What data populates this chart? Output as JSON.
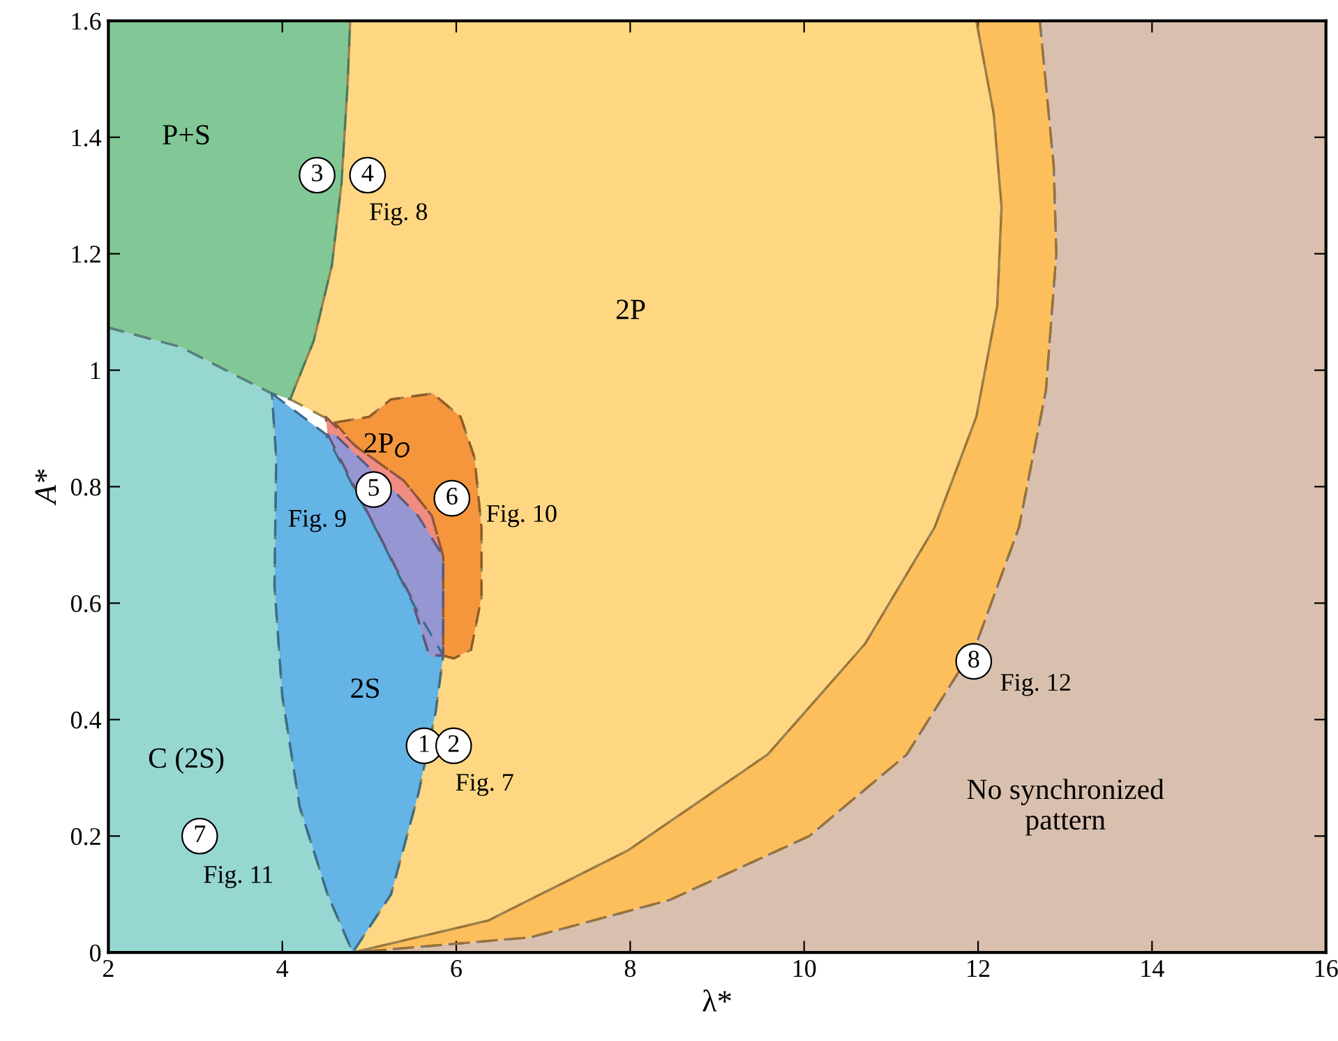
{
  "chart_data": {
    "type": "area",
    "xlabel": "λ*",
    "ylabel": "A*",
    "xlim": [
      2,
      16
    ],
    "ylim": [
      0,
      1.6
    ],
    "xticks": [
      2,
      4,
      6,
      8,
      10,
      12,
      14,
      16
    ],
    "yticks": [
      0,
      0.2,
      0.4,
      0.6,
      0.8,
      1,
      1.2,
      1.4,
      1.6
    ],
    "grid": false,
    "legend": false,
    "line_style": "dashed",
    "series": [
      {
        "name": "No synchronized\npattern",
        "color": "#d9c0ae",
        "x": [
          12.71,
          12.87,
          12.9,
          12.78,
          12.47,
          11.98,
          11.18,
          10.06,
          8.45,
          6.85,
          4.81,
          16,
          16
        ],
        "values": [
          1.6,
          1.35,
          1.2,
          0.965,
          0.73,
          0.53,
          0.34,
          0.2,
          0.09,
          0.026,
          0,
          0,
          1.6
        ]
      },
      {
        "color": "#fdbe5c",
        "x": [
          11.98,
          12.18,
          12.27,
          12.22,
          11.98,
          11.5,
          10.7,
          9.58,
          7.97,
          6.37,
          4.81,
          6.85,
          8.45,
          10.06,
          11.18,
          11.98,
          12.47,
          12.78,
          12.9,
          12.87,
          12.71
        ],
        "values": [
          1.6,
          1.44,
          1.28,
          1.11,
          0.92,
          0.73,
          0.53,
          0.34,
          0.175,
          0.055,
          0,
          0.026,
          0.09,
          0.2,
          0.34,
          0.53,
          0.73,
          0.965,
          1.2,
          1.35,
          1.6
        ]
      },
      {
        "name": "2P",
        "color": "#ffd782",
        "x": [
          4.78,
          11.98,
          12.18,
          12.27,
          12.22,
          11.98,
          11.5,
          10.7,
          9.58,
          7.97,
          6.37,
          4.81,
          5.25,
          5.56,
          5.76,
          5.85,
          5.97,
          6.17,
          6.29,
          6.29,
          6.21,
          6.05,
          5.73,
          5.25,
          5.0,
          4.6,
          4.09,
          4.36,
          4.57,
          4.68,
          4.75
        ],
        "values": [
          1.6,
          1.6,
          1.44,
          1.28,
          1.11,
          0.92,
          0.73,
          0.53,
          0.34,
          0.175,
          0.055,
          0,
          0.1,
          0.27,
          0.41,
          0.51,
          0.505,
          0.52,
          0.61,
          0.73,
          0.85,
          0.92,
          0.96,
          0.95,
          0.92,
          0.91,
          0.95,
          1.05,
          1.18,
          1.32,
          1.49
        ]
      },
      {
        "name": "P+S",
        "color": "#82c896",
        "x": [
          2,
          4.78,
          4.75,
          4.68,
          4.57,
          4.36,
          4.09,
          3.88,
          3.48,
          2.83,
          2
        ],
        "values": [
          1.6,
          1.6,
          1.49,
          1.32,
          1.18,
          1.05,
          0.95,
          0.96,
          0.99,
          1.04,
          1.073
        ]
      },
      {
        "name": "C (2S)",
        "color": "#96d7d2",
        "x": [
          2,
          2.83,
          3.48,
          3.88,
          3.93,
          3.91,
          4.0,
          4.2,
          4.52,
          4.81,
          2,
          2
        ],
        "values": [
          1.073,
          1.04,
          0.99,
          0.96,
          0.85,
          0.63,
          0.44,
          0.25,
          0.1,
          0,
          0,
          0.5
        ]
      },
      {
        "name": "2S",
        "color": "#64b4e6",
        "x": [
          3.88,
          4.5,
          5.1,
          5.5,
          5.85,
          5.76,
          5.56,
          5.25,
          4.81,
          4.52,
          4.2,
          4.0,
          3.91,
          3.93
        ],
        "values": [
          0.96,
          0.89,
          0.72,
          0.6,
          0.51,
          0.41,
          0.27,
          0.1,
          0,
          0.1,
          0.25,
          0.44,
          0.63,
          0.85
        ]
      },
      {
        "name": "2P$_{O}$",
        "color": "#f5963c",
        "x": [
          4.6,
          5.0,
          5.25,
          5.73,
          6.05,
          6.21,
          6.29,
          6.29,
          6.17,
          5.97,
          5.85,
          5.85,
          5.72,
          5.4,
          4.84
        ],
        "values": [
          0.91,
          0.92,
          0.95,
          0.96,
          0.92,
          0.85,
          0.73,
          0.61,
          0.52,
          0.505,
          0.51,
          0.68,
          0.75,
          0.81,
          0.87
        ]
      },
      {
        "color": "#f08c80",
        "x": [
          4.5,
          4.84,
          5.4,
          5.72,
          5.85,
          5.85,
          5.69,
          5.48,
          5.0,
          4.52
        ],
        "values": [
          0.92,
          0.87,
          0.81,
          0.75,
          0.68,
          0.51,
          0.51,
          0.61,
          0.75,
          0.89
        ]
      },
      {
        "color": "#9696d2",
        "x": [
          4.52,
          5.0,
          5.48,
          5.69,
          5.85,
          5.85,
          5.56,
          5.3,
          4.6
        ],
        "values": [
          0.89,
          0.75,
          0.61,
          0.51,
          0.51,
          0.68,
          0.75,
          0.79,
          0.89
        ]
      },
      {
        "type": "scatter",
        "marker": "circle",
        "color": "#ffffff",
        "x": [
          5.63,
          5.97,
          4.4,
          4.98,
          5.05,
          5.95,
          3.05,
          11.95
        ],
        "values": [
          0.355,
          0.355,
          1.335,
          1.335,
          0.795,
          0.78,
          0.2,
          0.5
        ]
      }
    ],
    "annotations": [
      {
        "text": "1",
        "x": 5.63,
        "y": 0.355
      },
      {
        "text": "2",
        "x": 5.97,
        "y": 0.355
      },
      {
        "text": "3",
        "x": 4.4,
        "y": 1.335
      },
      {
        "text": "4",
        "x": 4.98,
        "y": 1.335
      },
      {
        "text": "5",
        "x": 5.05,
        "y": 0.795
      },
      {
        "text": "6",
        "x": 5.95,
        "y": 0.78
      },
      {
        "text": "7",
        "x": 3.05,
        "y": 0.2
      },
      {
        "text": "8",
        "x": 11.95,
        "y": 0.5
      },
      {
        "text": "Fig. 7",
        "x": 5.97,
        "y": 0.355
      },
      {
        "text": "Fig. 8",
        "x": 4.98,
        "y": 1.335
      },
      {
        "text": "Fig. 9",
        "x": 5.05,
        "y": 0.795
      },
      {
        "text": "Fig. 10",
        "x": 5.95,
        "y": 0.78
      },
      {
        "text": "Fig. 11",
        "x": 3.05,
        "y": 0.2
      },
      {
        "text": "Fig. 12",
        "x": 11.95,
        "y": 0.5
      }
    ]
  }
}
